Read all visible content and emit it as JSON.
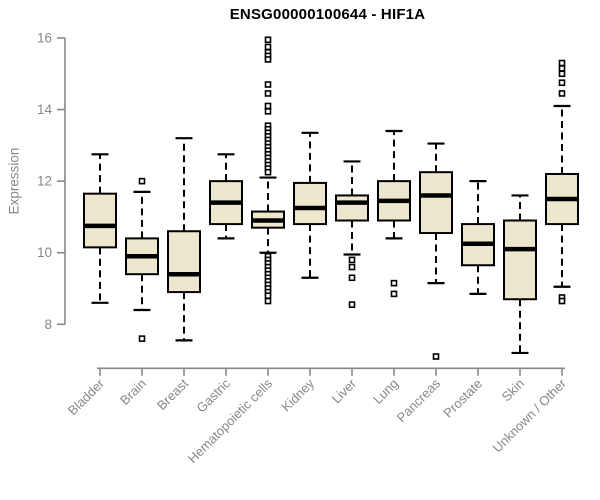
{
  "title": "ENSG00000100644 - HIF1A",
  "style": {
    "box_fill": "#EDE8CD",
    "box_stroke": "#000000",
    "median_color": "#000000",
    "whisker_color": "#000000",
    "axis_color": "#888888",
    "tick_label_color": "#888888",
    "title_color": "#000000",
    "background": "#ffffff"
  },
  "chart_data": {
    "type": "boxplot",
    "title": "ENSG00000100644 - HIF1A",
    "xlabel": "",
    "ylabel": "Expression",
    "ylim": [
      7.0,
      16.2
    ],
    "yticks": [
      8,
      10,
      12,
      14,
      16
    ],
    "grid": false,
    "legend": "none",
    "categories": [
      "Bladder",
      "Brain",
      "Breast",
      "Gastric",
      "Hematopoietic cells",
      "Kidney",
      "Liver",
      "Lung",
      "Pancreas",
      "Prostate",
      "Skin",
      "Unknown / Other"
    ],
    "series": [
      {
        "name": "Bladder",
        "low": 8.6,
        "q1": 10.15,
        "median": 10.75,
        "q3": 11.65,
        "high": 12.75,
        "outliers": []
      },
      {
        "name": "Brain",
        "low": 8.4,
        "q1": 9.4,
        "median": 9.9,
        "q3": 10.4,
        "high": 11.7,
        "outliers": [
          12.0,
          7.6
        ]
      },
      {
        "name": "Breast",
        "low": 7.55,
        "q1": 8.9,
        "median": 9.4,
        "q3": 10.6,
        "high": 13.2,
        "outliers": []
      },
      {
        "name": "Gastric",
        "low": 10.4,
        "q1": 10.8,
        "median": 11.4,
        "q3": 12.0,
        "high": 12.75,
        "outliers": []
      },
      {
        "name": "Hematopoietic cells",
        "low": 10.0,
        "q1": 10.7,
        "median": 10.9,
        "q3": 11.15,
        "high": 12.1,
        "outliers": [
          15.95,
          15.75,
          15.6,
          15.5,
          15.4,
          14.7,
          14.45,
          14.1,
          13.95,
          13.55,
          13.45,
          13.35,
          13.25,
          13.15,
          13.05,
          12.95,
          12.85,
          12.75,
          12.65,
          12.55,
          12.45,
          12.35,
          12.25,
          9.9,
          9.8,
          9.7,
          9.6,
          9.5,
          9.4,
          9.3,
          9.2,
          9.1,
          9.0,
          8.9,
          8.8,
          8.65
        ]
      },
      {
        "name": "Kidney",
        "low": 9.3,
        "q1": 10.8,
        "median": 11.25,
        "q3": 11.95,
        "high": 13.35,
        "outliers": []
      },
      {
        "name": "Liver",
        "low": 9.95,
        "q1": 10.9,
        "median": 11.4,
        "q3": 11.6,
        "high": 12.55,
        "outliers": [
          9.8,
          9.6,
          9.3,
          8.55
        ]
      },
      {
        "name": "Lung",
        "low": 10.4,
        "q1": 10.9,
        "median": 11.45,
        "q3": 12.0,
        "high": 13.4,
        "outliers": [
          9.15,
          8.85
        ]
      },
      {
        "name": "Pancreas",
        "low": 9.15,
        "q1": 10.55,
        "median": 11.6,
        "q3": 12.25,
        "high": 13.05,
        "outliers": [
          7.1
        ]
      },
      {
        "name": "Prostate",
        "low": 8.85,
        "q1": 9.65,
        "median": 10.25,
        "q3": 10.8,
        "high": 12.0,
        "outliers": []
      },
      {
        "name": "Skin",
        "low": 7.2,
        "q1": 8.7,
        "median": 10.1,
        "q3": 10.9,
        "high": 11.6,
        "outliers": []
      },
      {
        "name": "Unknown / Other",
        "low": 9.05,
        "q1": 10.8,
        "median": 11.5,
        "q3": 12.2,
        "high": 14.1,
        "outliers": [
          15.3,
          15.15,
          15.0,
          14.75,
          14.45,
          8.75,
          8.65
        ]
      }
    ]
  }
}
